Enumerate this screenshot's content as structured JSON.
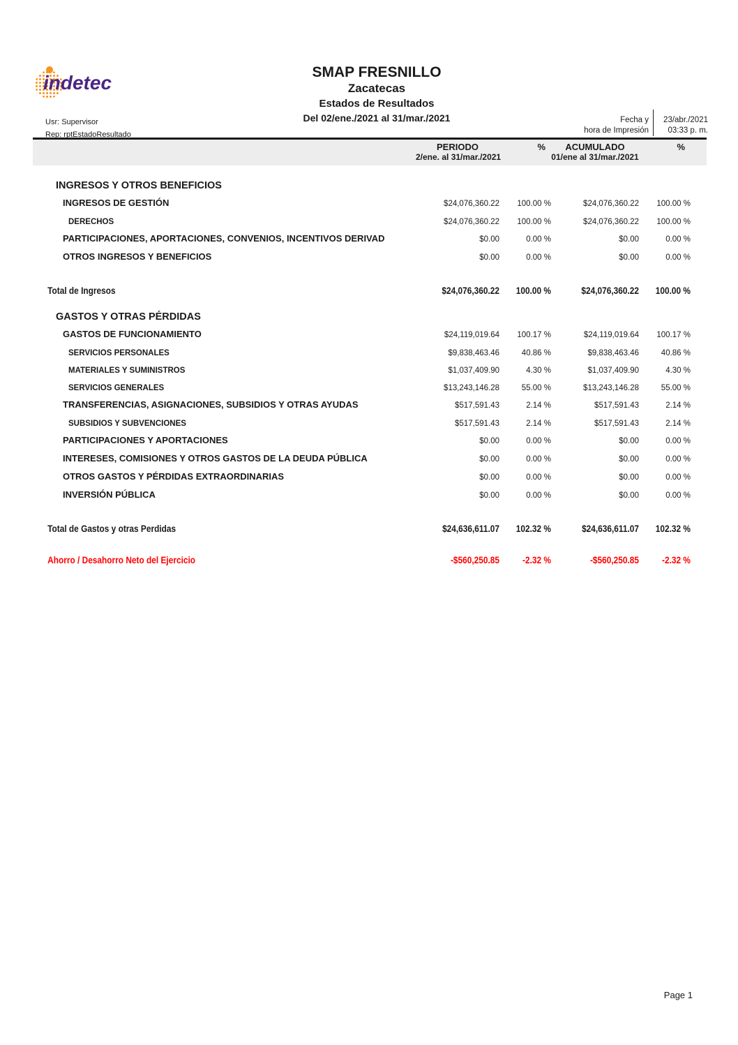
{
  "logo": {
    "text": "indetec",
    "purple": "#4b2585",
    "orange": "#f7941d"
  },
  "header": {
    "company": "SMAP FRESNILLO",
    "state": "Zacatecas",
    "report_title": "Estados de Resultados",
    "period_line": "Del 02/ene./2021 al 31/mar./2021",
    "user_label": "Usr: Supervisor",
    "report_label": "Rep: rptEstadoResultado",
    "print_label_line1": "Fecha y",
    "print_label_line2": "hora de Impresión",
    "print_date": "23/abr./2021",
    "print_time": "03:33 p. m."
  },
  "columns": {
    "period_title": "PERIODO",
    "period_sub": "2/ene. al 31/mar./2021",
    "period_pct": "%",
    "accum_title": "ACUMULADO",
    "accum_sub": "01/ene al 31/mar./2021",
    "accum_pct": "%"
  },
  "report": {
    "negative_color": "#ff0000",
    "rows": [
      {
        "label": "INGRESOS Y OTROS BENEFICIOS",
        "style": "section",
        "values": [
          "",
          "",
          "",
          ""
        ]
      },
      {
        "label": "INGRESOS DE GESTIÓN",
        "style": "group",
        "values": [
          "$24,076,360.22",
          "100.00 %",
          "$24,076,360.22",
          "100.00 %"
        ]
      },
      {
        "label": "DERECHOS",
        "style": "detail",
        "values": [
          "$24,076,360.22",
          "100.00 %",
          "$24,076,360.22",
          "100.00 %"
        ]
      },
      {
        "label": "PARTICIPACIONES, APORTACIONES, CONVENIOS, INCENTIVOS DERIVAD",
        "style": "group",
        "values": [
          "$0.00",
          "0.00 %",
          "$0.00",
          "0.00 %"
        ]
      },
      {
        "label": "OTROS INGRESOS Y BENEFICIOS",
        "style": "group",
        "values": [
          "$0.00",
          "0.00 %",
          "$0.00",
          "0.00 %"
        ]
      },
      {
        "label": "Total de Ingresos",
        "style": "total",
        "values": [
          "$24,076,360.22",
          "100.00 %",
          "$24,076,360.22",
          "100.00 %"
        ]
      },
      {
        "label": "GASTOS Y OTRAS PÉRDIDAS",
        "style": "section",
        "values": [
          "",
          "",
          "",
          ""
        ]
      },
      {
        "label": "GASTOS DE FUNCIONAMIENTO",
        "style": "group",
        "values": [
          "$24,119,019.64",
          "100.17 %",
          "$24,119,019.64",
          "100.17 %"
        ]
      },
      {
        "label": "SERVICIOS PERSONALES",
        "style": "detail",
        "values": [
          "$9,838,463.46",
          "40.86 %",
          "$9,838,463.46",
          "40.86 %"
        ]
      },
      {
        "label": "MATERIALES Y SUMINISTROS",
        "style": "detail",
        "values": [
          "$1,037,409.90",
          "4.30 %",
          "$1,037,409.90",
          "4.30 %"
        ]
      },
      {
        "label": "SERVICIOS GENERALES",
        "style": "detail",
        "values": [
          "$13,243,146.28",
          "55.00 %",
          "$13,243,146.28",
          "55.00 %"
        ]
      },
      {
        "label": "TRANSFERENCIAS, ASIGNACIONES, SUBSIDIOS Y OTRAS AYUDAS",
        "style": "group",
        "values": [
          "$517,591.43",
          "2.14 %",
          "$517,591.43",
          "2.14 %"
        ]
      },
      {
        "label": "SUBSIDIOS Y SUBVENCIONES",
        "style": "detail",
        "values": [
          "$517,591.43",
          "2.14 %",
          "$517,591.43",
          "2.14 %"
        ]
      },
      {
        "label": "PARTICIPACIONES Y APORTACIONES",
        "style": "group",
        "values": [
          "$0.00",
          "0.00 %",
          "$0.00",
          "0.00 %"
        ]
      },
      {
        "label": "INTERESES, COMISIONES Y OTROS GASTOS DE LA DEUDA PÚBLICA",
        "style": "group",
        "values": [
          "$0.00",
          "0.00 %",
          "$0.00",
          "0.00 %"
        ]
      },
      {
        "label": "OTROS GASTOS Y PÉRDIDAS EXTRAORDINARIAS",
        "style": "group",
        "values": [
          "$0.00",
          "0.00 %",
          "$0.00",
          "0.00 %"
        ]
      },
      {
        "label": "INVERSIÓN PÚBLICA",
        "style": "group",
        "values": [
          "$0.00",
          "0.00 %",
          "$0.00",
          "0.00 %"
        ]
      },
      {
        "label": "Total de Gastos y otras Perdidas",
        "style": "total",
        "values": [
          "$24,636,611.07",
          "102.32 %",
          "$24,636,611.07",
          "102.32 %"
        ]
      },
      {
        "label": "Ahorro / Desahorro Neto del Ejercicio",
        "style": "net",
        "values": [
          "-$560,250.85",
          "-2.32 %",
          "-$560,250.85",
          "-2.32 %"
        ]
      }
    ]
  },
  "footer": {
    "page_label": "Page 1"
  }
}
